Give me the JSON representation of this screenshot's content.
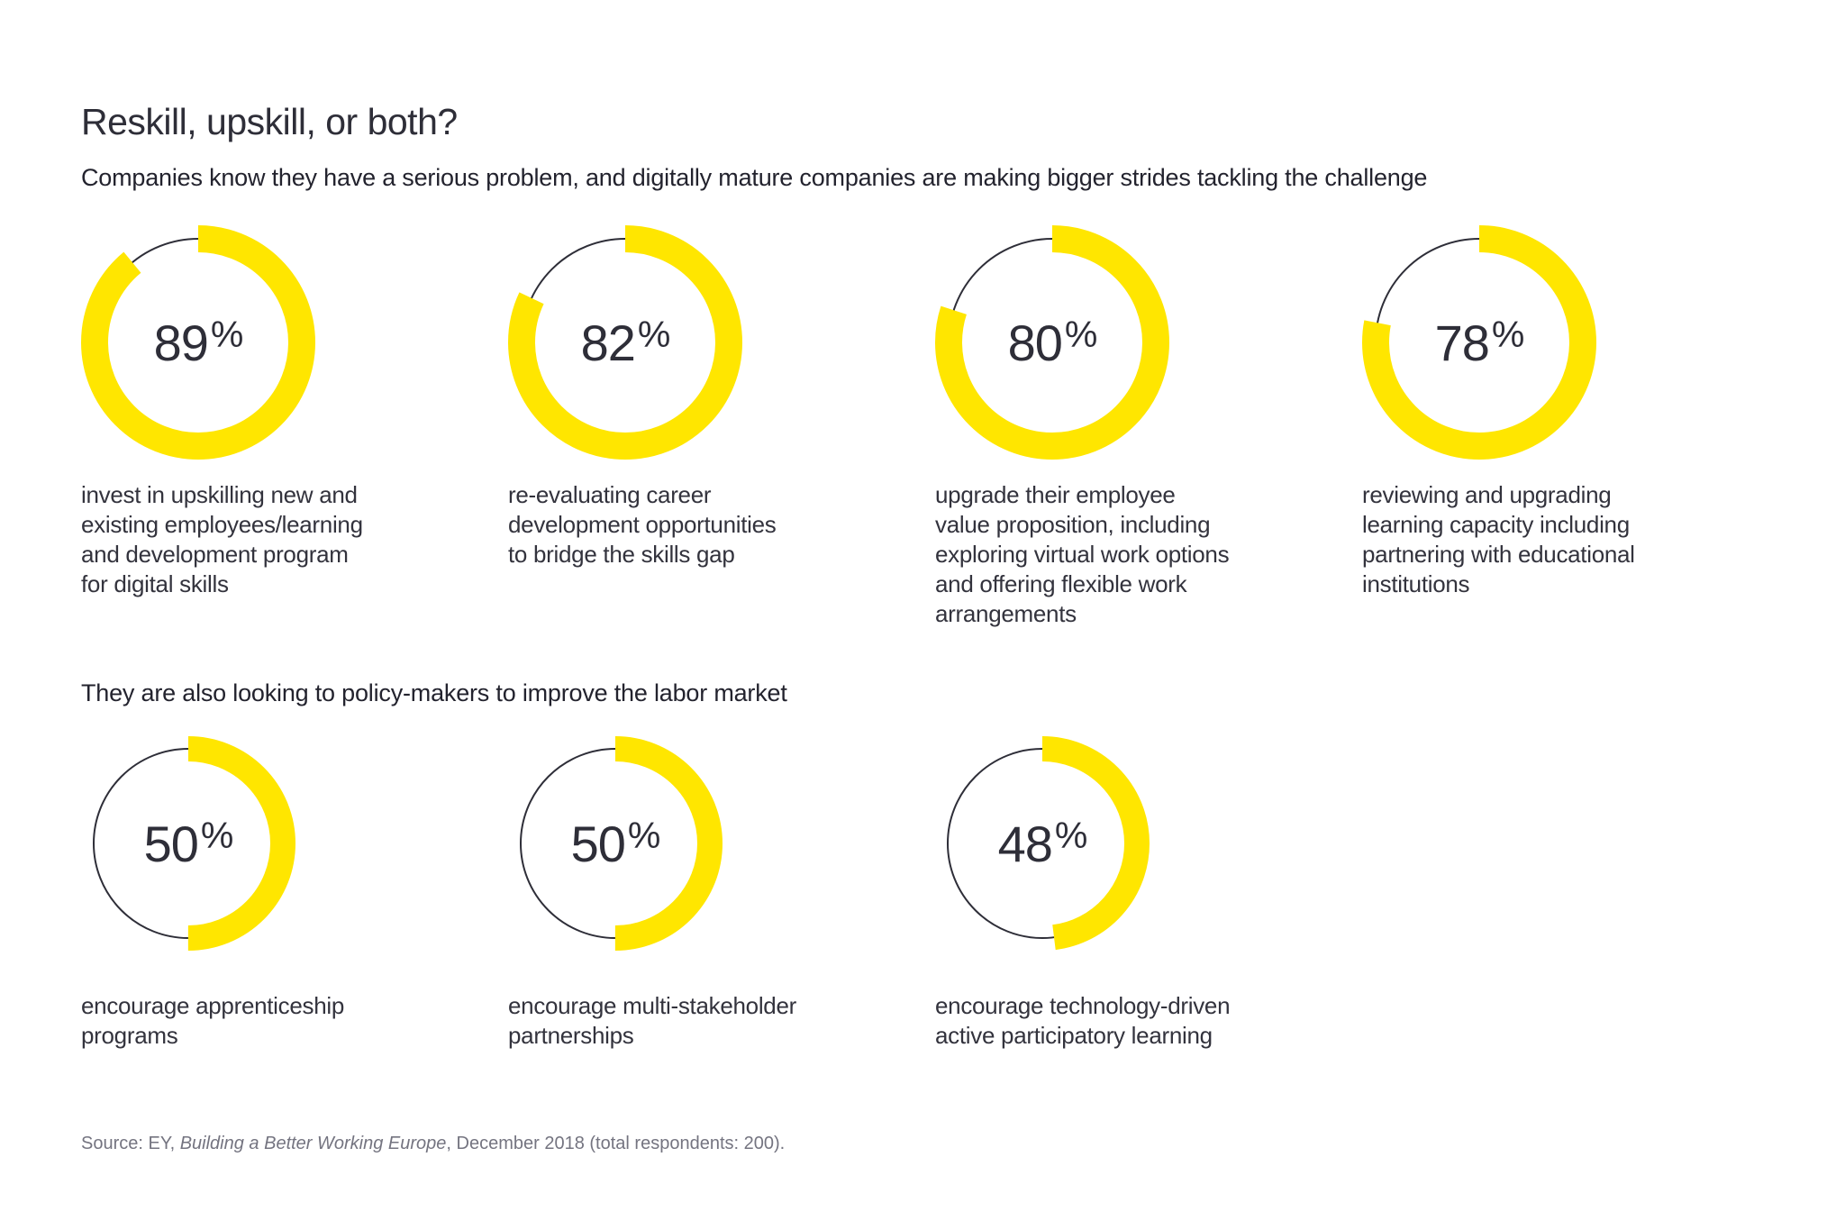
{
  "page": {
    "title": "Reskill, upskill, or both?",
    "percent_sign": "%"
  },
  "brand": {
    "accent_color": "#FFE600",
    "text_color": "#2e2e38",
    "muted_color": "#747480"
  },
  "sections": [
    {
      "heading": "Companies know they have a serious problem, and digitally mature companies are making bigger strides tackling the challenge",
      "stats": [
        {
          "percent": "89",
          "caption_lines": [
            "invest in upskilling new and",
            "existing employees/learning",
            "and development program",
            "for digital skills"
          ]
        },
        {
          "percent": "82",
          "caption_lines": [
            "re-evaluating career",
            "development opportunities",
            "to bridge the skills gap"
          ]
        },
        {
          "percent": "80",
          "caption_lines": [
            "upgrade their employee",
            "value proposition, including",
            "exploring virtual work options",
            "and offering flexible work",
            "arrangements"
          ]
        },
        {
          "percent": "78",
          "caption_lines": [
            "reviewing and upgrading",
            "learning capacity including",
            "partnering with educational",
            "institutions"
          ]
        }
      ]
    },
    {
      "heading": "They are also looking to policy-makers to improve the labor market",
      "stats": [
        {
          "percent": "50",
          "caption_lines": [
            "encourage apprenticeship",
            "programs"
          ]
        },
        {
          "percent": "50",
          "caption_lines": [
            "encourage multi-stakeholder",
            "partnerships"
          ]
        },
        {
          "percent": "48",
          "caption_lines": [
            "encourage technology-driven",
            "active participatory learning"
          ]
        }
      ]
    }
  ],
  "source": {
    "prefix": "Source: EY, ",
    "italic_title": "Building a Better Working Europe",
    "suffix": ", December 2018 (total respondents: 200)."
  },
  "chart_data": [
    {
      "type": "pie",
      "subtype": "donut-percent-rings",
      "title": "Companies know they have a serious problem, and digitally mature companies are making bigger strides tackling the challenge",
      "values": [
        89,
        82,
        80,
        78
      ],
      "unit": "%",
      "labels": [
        "invest in upskilling new and existing employees/learning and development program for digital skills",
        "re-evaluating career development opportunities to bridge the skills gap",
        "upgrade their employee value proposition, including exploring virtual work options and offering flexible work arrangements",
        "reviewing and upgrading learning capacity including partnering with educational institutions"
      ],
      "ring_color": "#FFE600",
      "track_color": "#2e2e38",
      "arc_start": "top",
      "direction": "clockwise",
      "legend_position": "below-each-ring"
    },
    {
      "type": "pie",
      "subtype": "donut-percent-rings",
      "title": "They are also looking to policy-makers to improve the labor market",
      "values": [
        50,
        50,
        48
      ],
      "unit": "%",
      "labels": [
        "encourage apprenticeship programs",
        "encourage multi-stakeholder partnerships",
        "encourage technology-driven active participatory learning"
      ],
      "ring_color": "#FFE600",
      "track_color": "#2e2e38",
      "arc_start": "top",
      "direction": "clockwise",
      "legend_position": "below-each-ring"
    }
  ]
}
